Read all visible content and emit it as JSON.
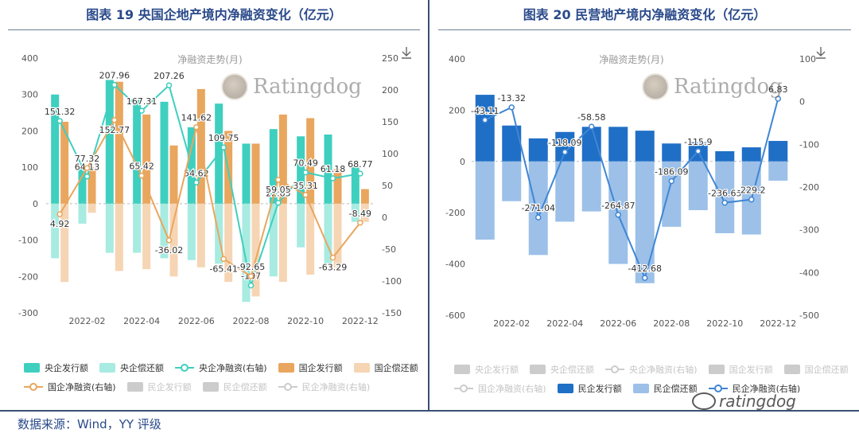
{
  "charts": [
    {
      "title": "图表 19 央国企地产境内净融资变化（亿元）",
      "legend": [
        {
          "name": "央企发行额",
          "type": "bar",
          "color": "#3ecfbf",
          "active": true
        },
        {
          "name": "央企偿还额",
          "type": "bar",
          "color": "#a7ebe1",
          "active": true
        },
        {
          "name": "央企净融资(右轴)",
          "type": "line",
          "color": "#3ecfbf",
          "active": true
        },
        {
          "name": "国企发行额",
          "type": "bar",
          "color": "#e9a65e",
          "active": true
        },
        {
          "name": "国企偿还额",
          "type": "bar",
          "color": "#f6d5b4",
          "active": true
        },
        {
          "name": "国企净融资(右轴)",
          "type": "line",
          "color": "#e9a65e",
          "active": true
        },
        {
          "name": "民企发行额",
          "type": "bar",
          "color": "#cccccc",
          "active": false
        },
        {
          "name": "民企偿还额",
          "type": "bar",
          "color": "#cccccc",
          "active": false
        },
        {
          "name": "民企净融资(右轴)",
          "type": "line",
          "color": "#cccccc",
          "active": false
        }
      ]
    },
    {
      "title": "图表 20 民营地产境内净融资变化（亿元）",
      "legend": [
        {
          "name": "央企发行额",
          "type": "bar",
          "color": "#cccccc",
          "active": false
        },
        {
          "name": "央企偿还额",
          "type": "bar",
          "color": "#cccccc",
          "active": false
        },
        {
          "name": "央企净融资(右轴)",
          "type": "line",
          "color": "#cccccc",
          "active": false
        },
        {
          "name": "国企发行额",
          "type": "bar",
          "color": "#cccccc",
          "active": false
        },
        {
          "name": "国企偿还额",
          "type": "bar",
          "color": "#cccccc",
          "active": false
        },
        {
          "name": "国企净融资(右轴)",
          "type": "line",
          "color": "#cccccc",
          "active": false
        },
        {
          "name": "民企发行额",
          "type": "bar",
          "color": "#1f6fc6",
          "active": true
        },
        {
          "name": "民企偿还额",
          "type": "bar",
          "color": "#9cc0e8",
          "active": true
        },
        {
          "name": "民企净融资(右轴)",
          "type": "line",
          "color": "#3f86d4",
          "active": true
        }
      ]
    }
  ],
  "chart_data": [
    {
      "type": "bar",
      "title": "净融资走势(月)",
      "categories": [
        "2022-01",
        "2022-02",
        "2022-03",
        "2022-04",
        "2022-05",
        "2022-06",
        "2022-07",
        "2022-08",
        "2022-09",
        "2022-10",
        "2022-11",
        "2022-12"
      ],
      "x_tick_labels": [
        "2022-02",
        "2022-04",
        "2022-06",
        "2022-08",
        "2022-10",
        "2022-12"
      ],
      "ylim_left": [
        -300,
        400
      ],
      "yticks_left": [
        -300,
        -200,
        -100,
        0,
        100,
        200,
        300,
        400
      ],
      "ylim_right": [
        -150,
        250
      ],
      "yticks_right": [
        -150,
        -100,
        -50,
        0,
        50,
        100,
        150,
        200,
        250
      ],
      "grid": false,
      "legend": "bottom",
      "series": [
        {
          "name": "央企发行额",
          "kind": "bar",
          "axis": "left",
          "color": "#3ecfbf",
          "values": [
            300,
            105,
            340,
            285,
            280,
            210,
            275,
            165,
            205,
            185,
            190,
            105
          ]
        },
        {
          "name": "央企偿还额",
          "kind": "bar",
          "axis": "left",
          "color": "#a7ebe1",
          "values": [
            -150,
            -55,
            -135,
            -135,
            -150,
            -155,
            -165,
            -270,
            -200,
            -120,
            -165,
            -50
          ]
        },
        {
          "name": "国企发行额",
          "kind": "bar",
          "axis": "left",
          "color": "#e9a65e",
          "values": [
            225,
            100,
            335,
            245,
            160,
            315,
            200,
            165,
            245,
            235,
            95,
            40
          ]
        },
        {
          "name": "国企偿还额",
          "kind": "bar",
          "axis": "left",
          "color": "#f6d5b4",
          "values": [
            -215,
            -25,
            -185,
            -180,
            -200,
            -175,
            -215,
            -255,
            -215,
            -195,
            -175,
            -50
          ]
        },
        {
          "name": "央企净融资(右轴)",
          "kind": "line",
          "axis": "right",
          "color": "#3ecfbf",
          "values": [
            151.32,
            64.13,
            207.96,
            167.31,
            207.26,
            54.62,
            109.75,
            -107,
            22.85,
            70.49,
            61.18,
            68.77
          ]
        },
        {
          "name": "国企净融资(右轴)",
          "kind": "line",
          "axis": "right",
          "color": "#e9a65e",
          "values": [
            4.92,
            77.32,
            152.77,
            65.42,
            -36.02,
            141.62,
            -65.41,
            -92.65,
            59.05,
            35.31,
            -63.29,
            -8.49
          ]
        }
      ]
    },
    {
      "type": "bar",
      "title": "净融资走势(月)",
      "categories": [
        "2022-01",
        "2022-02",
        "2022-03",
        "2022-04",
        "2022-05",
        "2022-06",
        "2022-07",
        "2022-08",
        "2022-09",
        "2022-10",
        "2022-11",
        "2022-12"
      ],
      "x_tick_labels": [
        "2022-02",
        "2022-04",
        "2022-06",
        "2022-08",
        "2022-10",
        "2022-12"
      ],
      "ylim_left": [
        -600,
        400
      ],
      "yticks_left": [
        -600,
        -400,
        -200,
        0,
        200,
        400
      ],
      "ylim_right": [
        -500,
        100
      ],
      "yticks_right": [
        -500,
        -400,
        -300,
        -200,
        -100,
        0,
        100
      ],
      "grid": false,
      "legend": "bottom",
      "series": [
        {
          "name": "民企发行额",
          "kind": "bar",
          "axis": "left",
          "color": "#1f6fc6",
          "values": [
            260,
            140,
            90,
            115,
            135,
            135,
            120,
            70,
            75,
            40,
            55,
            80
          ]
        },
        {
          "name": "民企偿还额",
          "kind": "bar",
          "axis": "left",
          "color": "#9cc0e8",
          "values": [
            -305,
            -155,
            -365,
            -235,
            -195,
            -400,
            -475,
            -255,
            -190,
            -280,
            -285,
            -75
          ]
        },
        {
          "name": "民企净融资(右轴)",
          "kind": "line",
          "axis": "right",
          "color": "#3f86d4",
          "values": [
            -43.11,
            -13.32,
            -271.04,
            -118.09,
            -58.58,
            -264.87,
            -412.68,
            -186.09,
            -115.9,
            -236.65,
            -229.2,
            6.83
          ]
        }
      ]
    }
  ],
  "watermark": {
    "text": "Ratingdog"
  },
  "footer_watermark": {
    "text": "ratingdog"
  },
  "source_note": "数据来源：Wind，YY 评级"
}
